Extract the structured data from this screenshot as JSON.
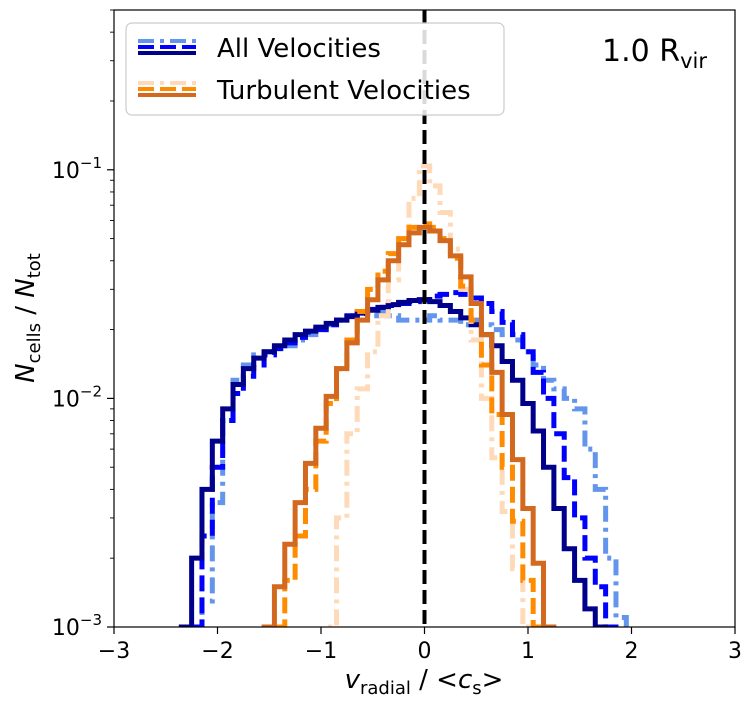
{
  "chart_data": {
    "type": "line",
    "step": true,
    "yscale": "log",
    "xlim": [
      -3,
      3
    ],
    "ylim": [
      0.001,
      0.5
    ],
    "xticks": [
      -3,
      -2,
      -1,
      0,
      1,
      2,
      3
    ],
    "xtick_labels": [
      "−3",
      "−2",
      "−1",
      "0",
      "1",
      "2",
      "3"
    ],
    "yticks": [
      0.001,
      0.01,
      0.1
    ],
    "ytick_base": "10",
    "ytick_exponents": [
      "−3",
      "−2",
      "−1"
    ],
    "xlabel": {
      "var": "v",
      "sub": "radial",
      "rest": " / <",
      "var2": "c",
      "sub2": "s",
      "end": ">"
    },
    "ylabel": {
      "var": "N",
      "sub": "cells",
      "rest": " / ",
      "var2": "N",
      "sub2": "tot"
    },
    "annotation": {
      "main": "1.0 R",
      "sub": "vir"
    },
    "vline": {
      "x": 0,
      "color": "#000000",
      "style": "dashed"
    },
    "legend": {
      "location": "upper-left",
      "entries": [
        {
          "label": "All Velocities",
          "colors": [
            "#6495ed",
            "#0000ff",
            "#00008b"
          ]
        },
        {
          "label": "Turbulent Velocities",
          "colors": [
            "#ffdab9",
            "#ff8c00",
            "#d2691e"
          ]
        }
      ]
    },
    "series": [
      {
        "name": "All Velocities (dash-dot)",
        "color": "#6495ed",
        "dash": "dashdot",
        "x": [
          -2.1,
          -2.0,
          -1.9,
          -1.8,
          -1.7,
          -1.6,
          -1.5,
          -1.4,
          -1.3,
          -1.2,
          -1.1,
          -1.0,
          -0.9,
          -0.8,
          -0.7,
          -0.6,
          -0.5,
          -0.4,
          -0.3,
          -0.2,
          -0.1,
          0.0,
          0.1,
          0.2,
          0.3,
          0.4,
          0.5,
          0.6,
          0.7,
          0.8,
          0.9,
          1.0,
          1.1,
          1.2,
          1.3,
          1.4,
          1.5,
          1.6,
          1.7,
          1.8,
          1.9
        ],
        "y": [
          0.0013,
          0.0035,
          0.008,
          0.012,
          0.014,
          0.0155,
          0.016,
          0.0165,
          0.017,
          0.018,
          0.019,
          0.02,
          0.021,
          0.022,
          0.023,
          0.024,
          0.023,
          0.024,
          0.023,
          0.022,
          0.022,
          0.022,
          0.023,
          0.022,
          0.022,
          0.021,
          0.022,
          0.021,
          0.02,
          0.019,
          0.018,
          0.016,
          0.014,
          0.012,
          0.011,
          0.01,
          0.009,
          0.006,
          0.004,
          0.002,
          0.0011
        ]
      },
      {
        "name": "All Velocities (dashed)",
        "color": "#0000ff",
        "dash": "dashed",
        "x": [
          -2.2,
          -2.1,
          -2.0,
          -1.9,
          -1.8,
          -1.7,
          -1.6,
          -1.5,
          -1.4,
          -1.3,
          -1.2,
          -1.1,
          -1.0,
          -0.9,
          -0.8,
          -0.7,
          -0.6,
          -0.5,
          -0.4,
          -0.3,
          -0.2,
          -0.1,
          0.0,
          0.1,
          0.2,
          0.3,
          0.4,
          0.5,
          0.6,
          0.7,
          0.8,
          0.9,
          1.0,
          1.1,
          1.2,
          1.3,
          1.4,
          1.5,
          1.6,
          1.7,
          1.8
        ],
        "y": [
          0.001,
          0.0025,
          0.005,
          0.008,
          0.0105,
          0.0125,
          0.014,
          0.0155,
          0.0165,
          0.0175,
          0.0185,
          0.0195,
          0.02,
          0.021,
          0.022,
          0.023,
          0.0235,
          0.0245,
          0.025,
          0.0255,
          0.026,
          0.0265,
          0.027,
          0.028,
          0.0285,
          0.029,
          0.0285,
          0.0275,
          0.026,
          0.024,
          0.0215,
          0.019,
          0.016,
          0.013,
          0.01,
          0.007,
          0.0045,
          0.003,
          0.002,
          0.0015,
          0.001
        ]
      },
      {
        "name": "All Velocities (solid)",
        "color": "#00008b",
        "dash": "solid",
        "x": [
          -2.3,
          -2.2,
          -2.1,
          -2.0,
          -1.9,
          -1.8,
          -1.7,
          -1.6,
          -1.5,
          -1.4,
          -1.3,
          -1.2,
          -1.1,
          -1.0,
          -0.9,
          -0.8,
          -0.7,
          -0.6,
          -0.5,
          -0.4,
          -0.3,
          -0.2,
          -0.1,
          0.0,
          0.1,
          0.2,
          0.3,
          0.4,
          0.5,
          0.6,
          0.7,
          0.8,
          0.9,
          1.0,
          1.1,
          1.2,
          1.3,
          1.4,
          1.5,
          1.6,
          1.7
        ],
        "y": [
          0.001,
          0.002,
          0.004,
          0.0065,
          0.009,
          0.0115,
          0.0135,
          0.015,
          0.016,
          0.017,
          0.018,
          0.019,
          0.0197,
          0.0205,
          0.0213,
          0.022,
          0.0228,
          0.0236,
          0.0243,
          0.025,
          0.0257,
          0.0263,
          0.0268,
          0.027,
          0.0265,
          0.0255,
          0.024,
          0.0225,
          0.021,
          0.019,
          0.017,
          0.0145,
          0.012,
          0.0095,
          0.0072,
          0.005,
          0.0033,
          0.0022,
          0.0016,
          0.0012,
          0.001
        ]
      },
      {
        "name": "Turbulent Velocities (dash-dot)",
        "color": "#ffdab9",
        "dash": "dashdot",
        "x": [
          -0.9,
          -0.8,
          -0.7,
          -0.6,
          -0.5,
          -0.4,
          -0.3,
          -0.2,
          -0.1,
          0.0,
          0.1,
          0.2,
          0.3,
          0.4,
          0.5,
          0.6,
          0.7,
          0.8,
          0.9,
          1.0
        ],
        "y": [
          0.001,
          0.003,
          0.007,
          0.011,
          0.016,
          0.023,
          0.033,
          0.05,
          0.075,
          0.104,
          0.085,
          0.065,
          0.045,
          0.03,
          0.018,
          0.01,
          0.0055,
          0.0032,
          0.0018,
          0.001
        ]
      },
      {
        "name": "Turbulent Velocities (dashed)",
        "color": "#ff8c00",
        "dash": "dashed",
        "x": [
          -1.4,
          -1.3,
          -1.2,
          -1.1,
          -1.0,
          -0.9,
          -0.8,
          -0.7,
          -0.6,
          -0.5,
          -0.4,
          -0.3,
          -0.2,
          -0.1,
          0.0,
          0.1,
          0.2,
          0.3,
          0.4,
          0.5,
          0.6,
          0.7,
          0.8,
          0.9,
          1.0,
          1.1
        ],
        "y": [
          0.001,
          0.0016,
          0.0025,
          0.004,
          0.0065,
          0.0095,
          0.0135,
          0.018,
          0.024,
          0.03,
          0.036,
          0.043,
          0.05,
          0.056,
          0.058,
          0.056,
          0.05,
          0.041,
          0.031,
          0.022,
          0.014,
          0.0085,
          0.005,
          0.0029,
          0.0016,
          0.001
        ]
      },
      {
        "name": "Turbulent Velocities (solid)",
        "color": "#d2691e",
        "dash": "solid",
        "x": [
          -1.5,
          -1.4,
          -1.3,
          -1.2,
          -1.1,
          -1.0,
          -0.9,
          -0.8,
          -0.7,
          -0.6,
          -0.5,
          -0.4,
          -0.3,
          -0.2,
          -0.1,
          0.0,
          0.1,
          0.2,
          0.3,
          0.4,
          0.5,
          0.6,
          0.7,
          0.8,
          0.9,
          1.0,
          1.1,
          1.2
        ],
        "y": [
          0.001,
          0.0015,
          0.0023,
          0.0035,
          0.0052,
          0.0074,
          0.0102,
          0.0135,
          0.0175,
          0.022,
          0.027,
          0.033,
          0.04,
          0.047,
          0.053,
          0.056,
          0.054,
          0.049,
          0.042,
          0.034,
          0.026,
          0.019,
          0.013,
          0.0085,
          0.0054,
          0.0033,
          0.0019,
          0.001
        ]
      }
    ]
  }
}
